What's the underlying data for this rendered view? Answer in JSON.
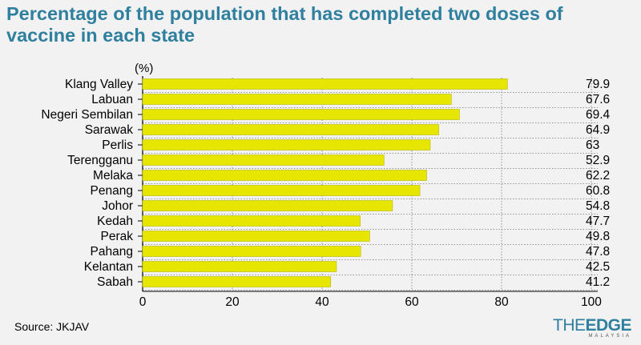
{
  "header": {
    "title": "Percentage of the population that has completed two doses of vaccine in each state"
  },
  "footer": {
    "source": "Source: JKJAV",
    "logo_text_the": "THE",
    "logo_text_edge": "EDGE",
    "logo_subtext": "MALAYSIA"
  },
  "colors": {
    "bar": "#e6e600",
    "bar_stroke": "#b8b800",
    "title": "#2f7f9e"
  },
  "chart_data": {
    "type": "bar",
    "orientation": "horizontal",
    "title": "Percentage of the population that has completed two doses of vaccine in each state",
    "unit_label": "(%)",
    "categories": [
      "Klang Valley",
      "Labuan",
      "Negeri Sembilan",
      "Sarawak",
      "Perlis",
      "Terengganu",
      "Melaka",
      "Penang",
      "Johor",
      "Kedah",
      "Perak",
      "Pahang",
      "Kelantan",
      "Sabah"
    ],
    "values_label": [
      79.9,
      67.6,
      69.4,
      64.9,
      63,
      52.9,
      62.2,
      60.8,
      54.8,
      47.7,
      49.8,
      47.8,
      42.5,
      41.2
    ],
    "bar_lengths": [
      81.3,
      68.8,
      70.6,
      66.0,
      64.1,
      53.8,
      63.3,
      61.8,
      55.7,
      48.5,
      50.6,
      48.6,
      43.2,
      41.9
    ],
    "xlim": [
      0,
      100
    ],
    "xticks": [
      0,
      20,
      40,
      60,
      80,
      100
    ],
    "grid": true,
    "legend": "none"
  }
}
